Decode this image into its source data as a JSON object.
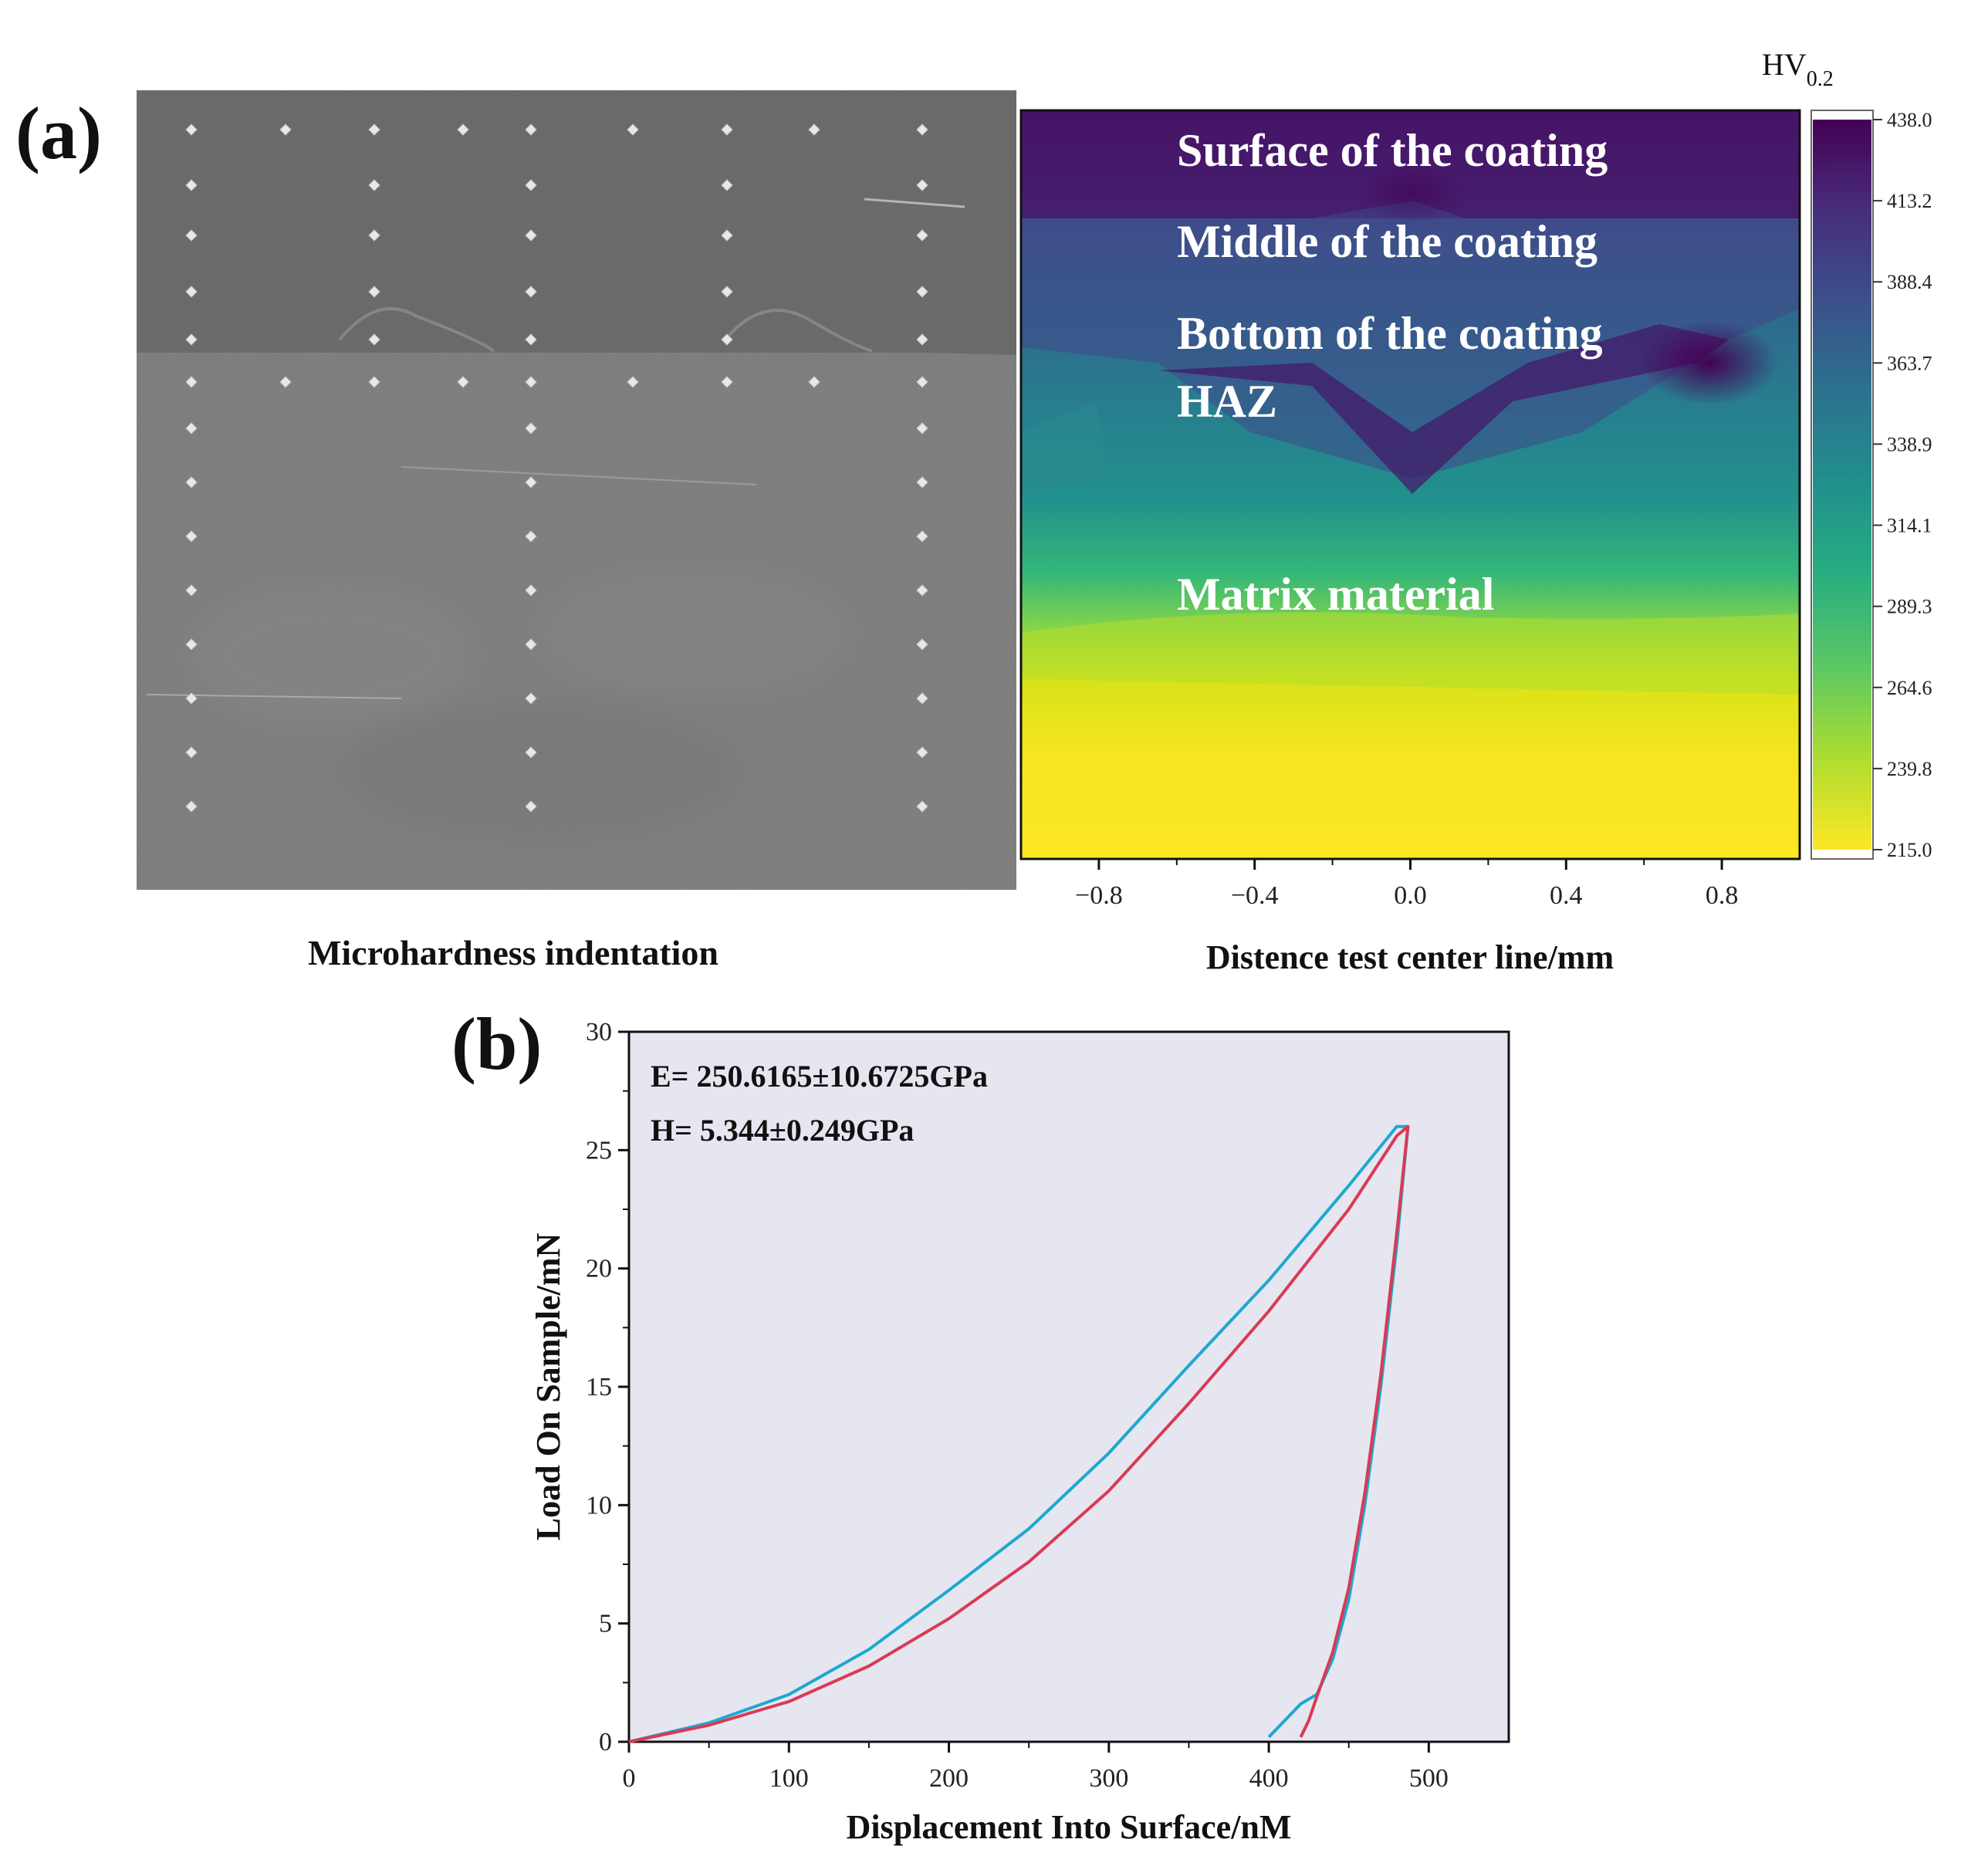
{
  "panel_a": {
    "label": "(a)",
    "micrograph_caption": "Microhardness indentation",
    "map_annotations": [
      "Surface of the coating",
      "Middle of the coating",
      "Bottom of the coating",
      "HAZ",
      "Matrix material"
    ],
    "colorbar": {
      "title_main": "HV",
      "title_sub": "0.2",
      "ticks": [
        "438.0",
        "413.2",
        "388.4",
        "363.7",
        "338.9",
        "314.1",
        "289.3",
        "264.6",
        "239.8",
        "215.0"
      ],
      "min": 215.0,
      "max": 438.0,
      "colormap": [
        "#440154",
        "#472c7a",
        "#3b518b",
        "#2c718e",
        "#21908d",
        "#27ad81",
        "#5cc863",
        "#aadc32",
        "#fde725"
      ]
    }
  },
  "panel_b": {
    "label": "(b)",
    "annotation_e": "E= 250.6165±10.6725GPa",
    "annotation_h": "H= 5.344±0.249GPa",
    "plot_bg": "#e6e6f0",
    "series_colors": [
      "#1ea8d0",
      "#d93a55"
    ]
  },
  "chart_data": [
    {
      "type": "heatmap",
      "title": "",
      "xlabel": "Distence test center line/mm",
      "ylabel": "",
      "xlim": [
        -1.0,
        1.0
      ],
      "x_ticks": [
        "−0.8",
        "−0.4",
        "0.0",
        "0.4",
        "0.8"
      ],
      "x_tick_values": [
        -0.8,
        -0.4,
        0.0,
        0.4,
        0.8
      ],
      "colorbar_range": [
        215.0,
        438.0
      ],
      "regions": [
        {
          "name": "Surface of the coating",
          "hv_approx": 430
        },
        {
          "name": "Middle of the coating",
          "hv_approx": 380
        },
        {
          "name": "Bottom of the coating",
          "hv_approx": 370
        },
        {
          "name": "HAZ",
          "hv_approx": 340
        },
        {
          "name": "Matrix material",
          "hv_approx": 230
        }
      ]
    },
    {
      "type": "line",
      "title": "",
      "xlabel": "Displacement Into Surface/nM",
      "ylabel": "Load On Sample/mN",
      "xlim": [
        0,
        550
      ],
      "ylim": [
        0,
        30
      ],
      "x_ticks": [
        0,
        100,
        200,
        300,
        400,
        500
      ],
      "y_ticks": [
        0,
        5,
        10,
        15,
        20,
        25,
        30
      ],
      "grid": false,
      "series": [
        {
          "x": [
            0,
            50,
            100,
            150,
            200,
            250,
            300,
            350,
            400,
            450,
            480,
            487,
            487,
            480,
            470,
            460,
            450,
            440,
            430,
            420,
            400
          ],
          "y": [
            0,
            0.8,
            2.0,
            3.9,
            6.4,
            9.0,
            12.2,
            15.9,
            19.5,
            23.5,
            26.0,
            26.0,
            26.0,
            21.0,
            15.0,
            10.0,
            6.0,
            3.5,
            2.0,
            1.6,
            0.2
          ]
        },
        {
          "x": [
            0,
            50,
            100,
            150,
            200,
            250,
            300,
            350,
            400,
            450,
            480,
            487,
            487,
            480,
            470,
            460,
            450,
            440,
            430,
            425,
            420
          ],
          "y": [
            0,
            0.7,
            1.7,
            3.2,
            5.2,
            7.6,
            10.6,
            14.3,
            18.2,
            22.5,
            25.6,
            26.0,
            26.0,
            21.5,
            15.5,
            10.5,
            6.5,
            3.8,
            1.9,
            0.9,
            0.2
          ]
        }
      ]
    }
  ]
}
